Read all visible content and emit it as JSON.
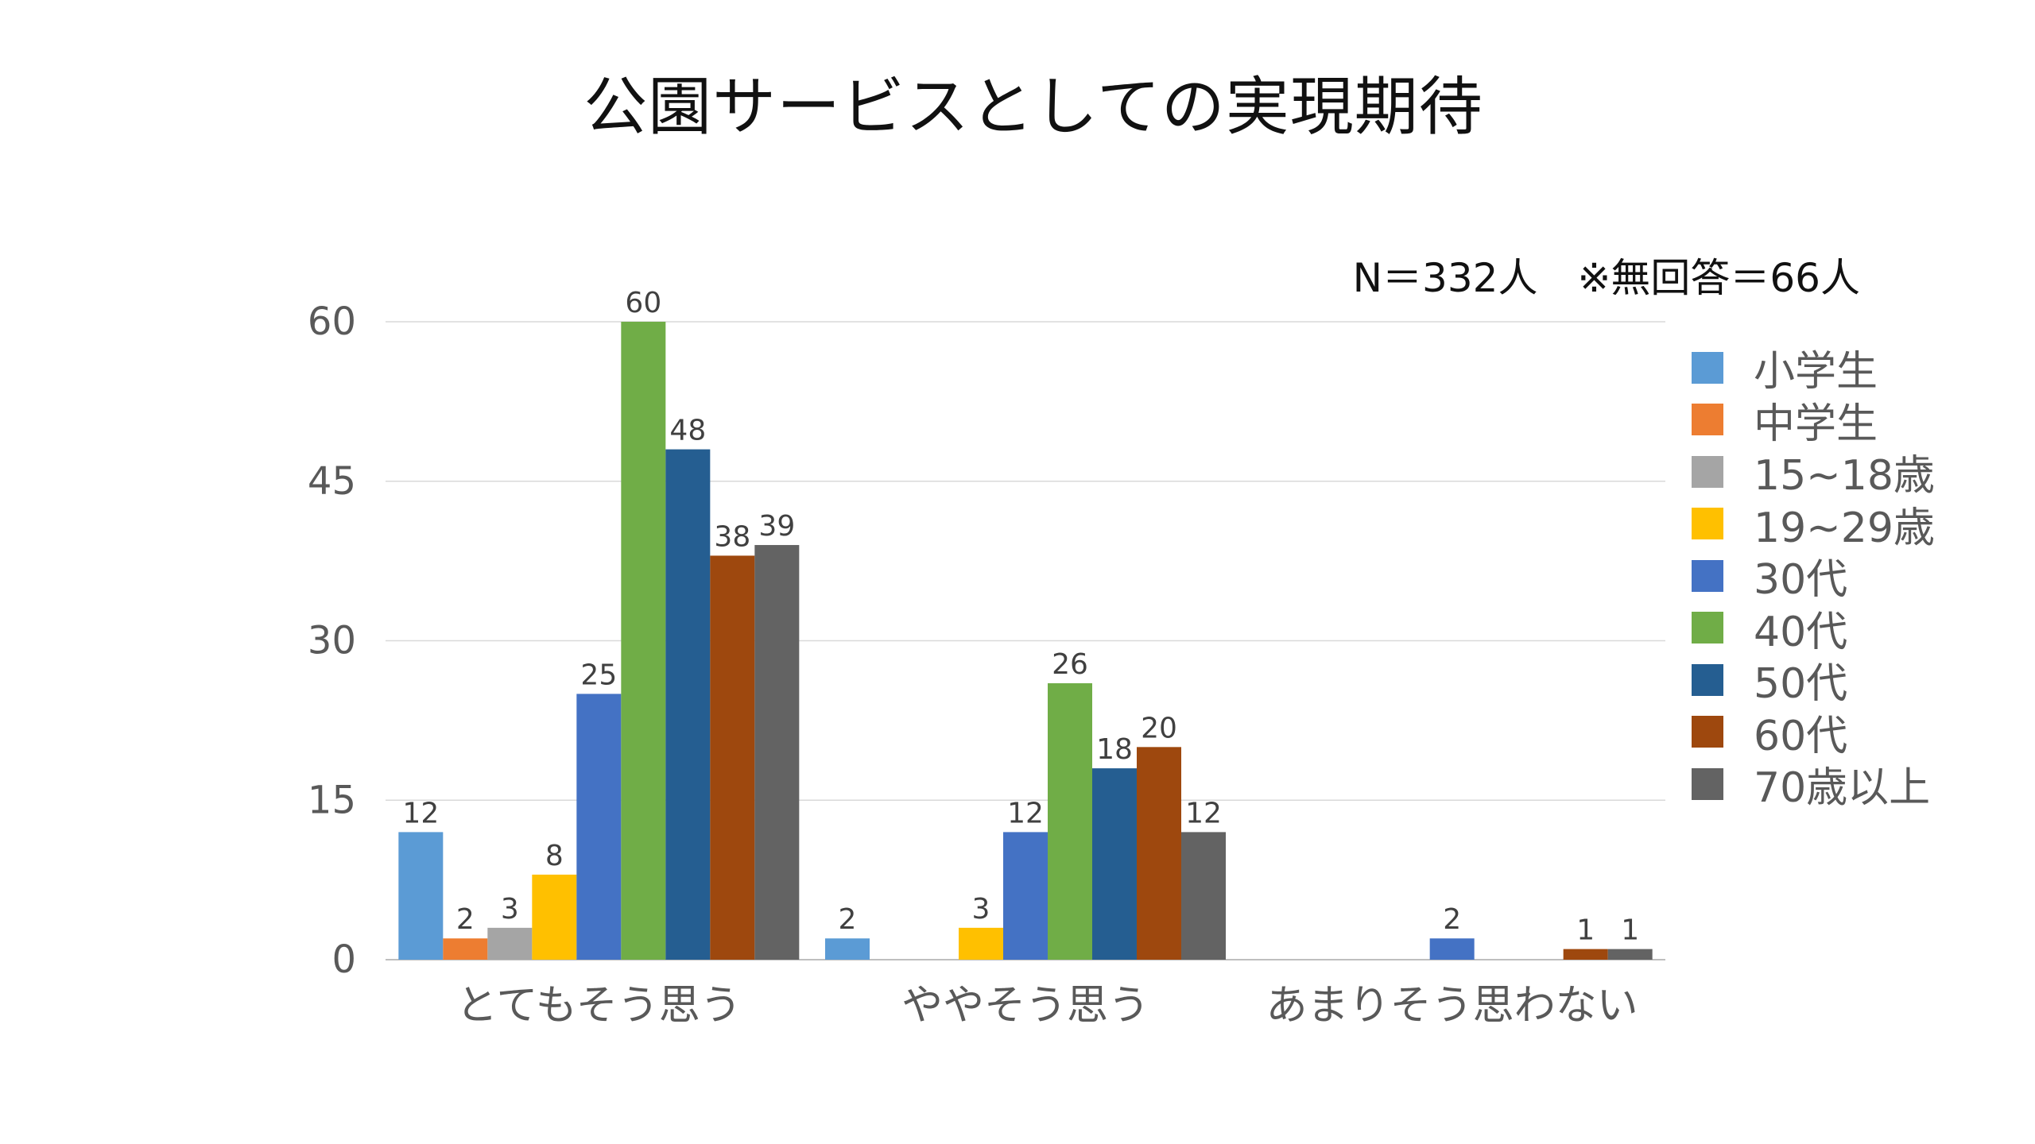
{
  "chart_data": {
    "type": "bar",
    "title": "公園サービスとしての実現期待",
    "note": "N＝332人　※無回答＝66人",
    "categories": [
      "とてもそう思う",
      "ややそう思う",
      "あまりそう思わない"
    ],
    "ylim": [
      0,
      60
    ],
    "yticks": [
      0,
      15,
      30,
      45,
      60
    ],
    "grid": true,
    "legend_position": "right",
    "series": [
      {
        "name": "小学生",
        "color": "#5B9BD5",
        "values": [
          12,
          2,
          null
        ]
      },
      {
        "name": "中学生",
        "color": "#ED7D31",
        "values": [
          2,
          null,
          null
        ]
      },
      {
        "name": "15~18歳",
        "color": "#A5A5A5",
        "values": [
          3,
          null,
          null
        ]
      },
      {
        "name": "19~29歳",
        "color": "#FFC000",
        "values": [
          8,
          3,
          null
        ]
      },
      {
        "name": "30代",
        "color": "#4472C4",
        "values": [
          25,
          12,
          2
        ]
      },
      {
        "name": "40代",
        "color": "#70AD47",
        "values": [
          60,
          26,
          null
        ]
      },
      {
        "name": "50代",
        "color": "#255E91",
        "values": [
          48,
          18,
          null
        ]
      },
      {
        "name": "60代",
        "color": "#9E480E",
        "values": [
          38,
          20,
          1
        ]
      },
      {
        "name": "70歳以上",
        "color": "#636363",
        "values": [
          39,
          12,
          1
        ]
      }
    ]
  }
}
